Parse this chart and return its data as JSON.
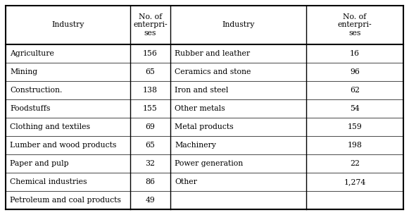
{
  "col_headers": [
    "Industry",
    "No. of\nenterpri-\nses",
    "Industry",
    "No. of\nenterpri-\nses"
  ],
  "left_industries": [
    "Agriculture",
    "Mining",
    "Construction.",
    "Foodstuffs",
    "Clothing and textiles",
    "Lumber and wood products",
    "Paper and pulp",
    "Chemical industries",
    "Petroleum and coal products"
  ],
  "left_values": [
    "156",
    "65",
    "138",
    "155",
    "69",
    "65",
    "32",
    "86",
    "49"
  ],
  "right_industries": [
    "Rubber and leather",
    "Ceramics and stone",
    "Iron and steel",
    "Other metals",
    "Metal products",
    "Machinery",
    "Power generation",
    "Other",
    ""
  ],
  "right_values": [
    "16",
    "96",
    "62",
    "54",
    "159",
    "198",
    "22",
    "1,274",
    ""
  ],
  "bg_color": "#ffffff",
  "text_color": "#000000",
  "line_color": "#000000",
  "font_size": 7.8,
  "header_font_size": 7.8
}
